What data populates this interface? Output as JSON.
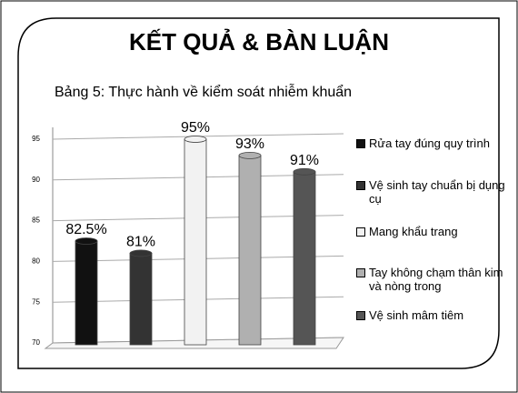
{
  "slide": {
    "title": "KẾT QUẢ & BÀN LUẬN",
    "subtitle": "Bảng 5: Thực hành về kiểm soát nhiễm khuẩn"
  },
  "chart_data": {
    "type": "bar",
    "ylim": [
      70,
      96
    ],
    "yticks": [
      70,
      75,
      80,
      85,
      90,
      95
    ],
    "grid": true,
    "series": [
      {
        "name": "Rửa tay đúng quy trình",
        "color": "#111111",
        "values": [
          82.5
        ],
        "value_labels": [
          "82.5%"
        ]
      },
      {
        "name": "Vệ sinh tay chuẩn bị dụng cụ",
        "color": "#333333",
        "values": [
          81
        ],
        "value_labels": [
          "81%"
        ]
      },
      {
        "name": "Mang khẩu trang",
        "color": "#f2f2f2",
        "values": [
          95
        ],
        "value_labels": [
          "95%"
        ]
      },
      {
        "name": "Tay không chạm thân kim và nòng trong",
        "color": "#b0b0b0",
        "values": [
          93
        ],
        "value_labels": [
          "93%"
        ]
      },
      {
        "name": "Vệ sinh mâm tiêm",
        "color": "#555555",
        "values": [
          91
        ],
        "value_labels": [
          "91%"
        ]
      }
    ]
  }
}
